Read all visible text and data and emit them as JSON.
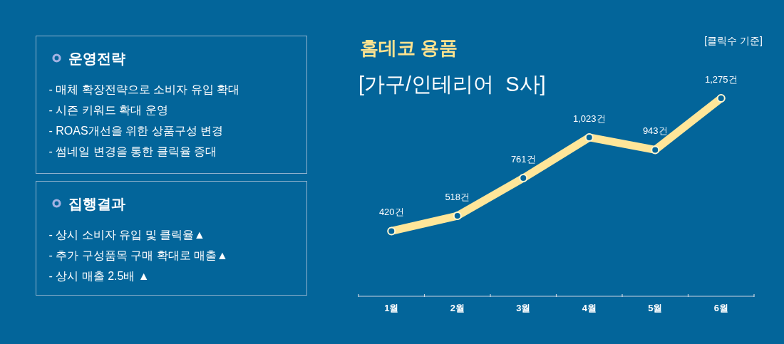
{
  "chart_data": [
    {
      "type": "other",
      "title": "운영전략",
      "annotations": [
        "- 매체 확장전략으로 소비자 유입 확대",
        "- 시즌 키워드 확대 운영",
        "- ROAS개선을 위한 상품구성 변경",
        "- 썸네일 변경을 통한 클릭율 증대"
      ]
    },
    {
      "type": "other",
      "title": "집행결과",
      "annotations": [
        "- 상시 소비자 유입 및 클릭율▲",
        "- 추가 구성품목 구매 확대로 매출▲",
        "- 상시 매출 2.5배 ▲"
      ]
    },
    {
      "type": "line",
      "title": "홈데코 용품",
      "subtitle": "[가구/인테리어  S사]",
      "annotations": [
        "[클릭수 기준]"
      ],
      "categories": [
        "1월",
        "2월",
        "3월",
        "4월",
        "5월",
        "6월"
      ],
      "values": [
        420,
        518,
        761,
        1023,
        943,
        1275
      ],
      "value_labels": [
        "420건",
        "518건",
        "761건",
        "1,023건",
        "943건",
        "1,275건"
      ],
      "color": "#ffe699",
      "marker": "circle",
      "tick_labels": "x"
    }
  ]
}
